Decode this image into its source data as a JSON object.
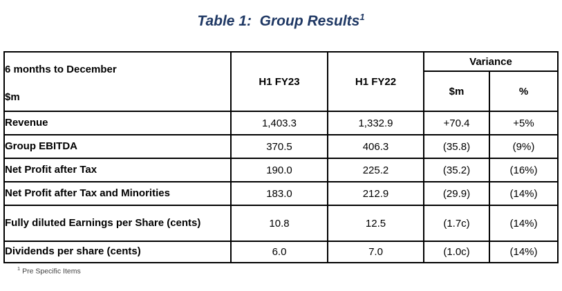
{
  "title": {
    "text": "Table 1:  Group Results",
    "footnote_ref": "1"
  },
  "colors": {
    "title_blue": "#1f3864",
    "table_border": "#000000",
    "body_text": "#000000",
    "background": "#ffffff"
  },
  "table": {
    "header": {
      "period_label": "6 months to December",
      "unit_label": "$m",
      "col_fy23": "H1 FY23",
      "col_fy22": "H1 FY22",
      "variance_group": "Variance",
      "variance_m": "$m",
      "variance_pct": "%"
    },
    "rows": [
      {
        "label": "Revenue",
        "fy23": "1,403.3",
        "fy22": "1,332.9",
        "var_m": "+70.4",
        "var_pct": "+5%"
      },
      {
        "label": "Group EBITDA",
        "fy23": "370.5",
        "fy22": "406.3",
        "var_m": "(35.8)",
        "var_pct": "(9%)"
      },
      {
        "label": "Net Profit after Tax",
        "fy23": "190.0",
        "fy22": "225.2",
        "var_m": "(35.2)",
        "var_pct": "(16%)"
      },
      {
        "label": "Net Profit after Tax and Minorities",
        "fy23": "183.0",
        "fy22": "212.9",
        "var_m": "(29.9)",
        "var_pct": "(14%)"
      },
      {
        "label": "Fully diluted Earnings per Share (cents)",
        "fy23": "10.8",
        "fy22": "12.5",
        "var_m": "(1.7c)",
        "var_pct": "(14%)"
      },
      {
        "label": "Dividends per share (cents)",
        "fy23": "6.0",
        "fy22": "7.0",
        "var_m": "(1.0c)",
        "var_pct": "(14%)"
      }
    ]
  },
  "footnote": {
    "ref": "1",
    "text": "Pre Specific Items"
  }
}
